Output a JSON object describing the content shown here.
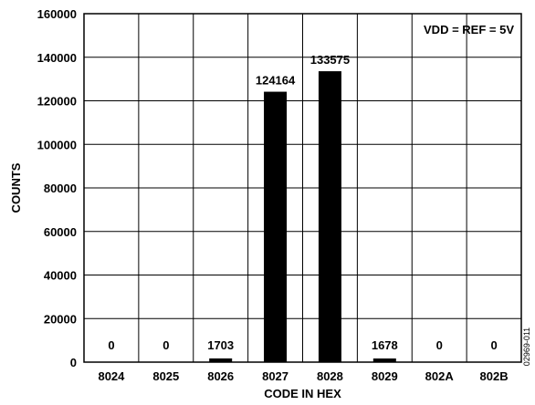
{
  "chart_data": {
    "type": "bar",
    "categories": [
      "8024",
      "8025",
      "8026",
      "8027",
      "8028",
      "8029",
      "802A",
      "802B"
    ],
    "values": [
      0,
      0,
      1703,
      124164,
      133575,
      1678,
      0,
      0
    ],
    "data_labels": [
      "0",
      "0",
      "1703",
      "124164",
      "133575",
      "1678",
      "0",
      "0"
    ],
    "xlabel": "CODE IN HEX",
    "ylabel": "COUNTS",
    "ylim": [
      0,
      160000
    ],
    "yticks": [
      "0",
      "20000",
      "40000",
      "60000",
      "80000",
      "100000",
      "120000",
      "140000",
      "160000"
    ],
    "annotation": "VDD = REF = 5V",
    "figure_id": "02969-011",
    "grid": true,
    "bar_color": "#000000"
  }
}
